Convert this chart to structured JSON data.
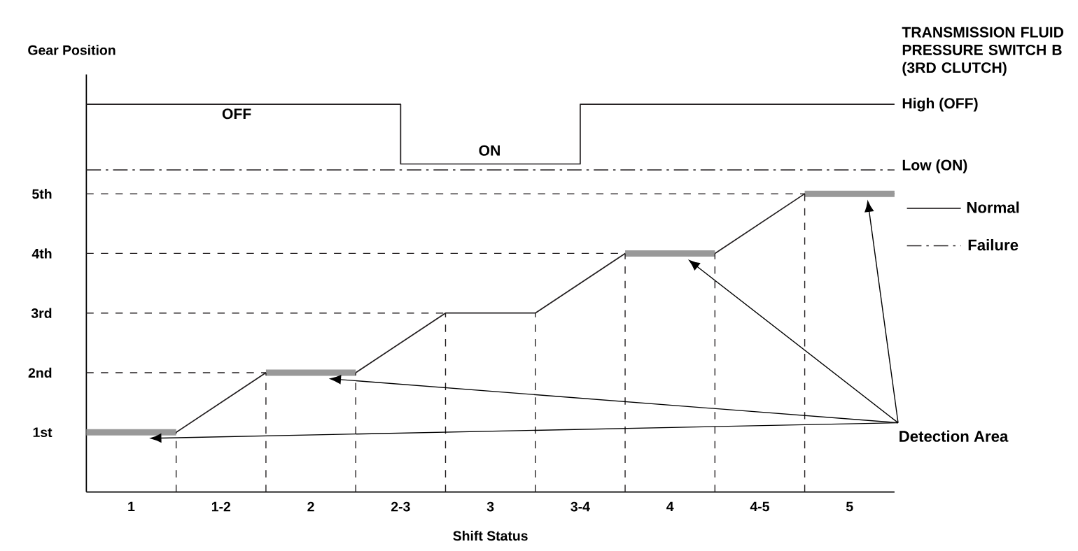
{
  "chart_data": {
    "type": "line",
    "xlabel": "Shift Status",
    "ylabel": "Gear Position",
    "x": [
      0.75,
      1.25,
      1.75,
      2.25,
      2.75,
      3.25,
      3.75,
      4.25,
      4.75,
      5.25
    ],
    "xlim": [
      0.75,
      5.25
    ],
    "ylim": [
      0,
      7
    ],
    "xticks": [
      1,
      {
        "value": 1.5,
        "label": "1-2"
      },
      2,
      {
        "value": 2.5,
        "label": "2-3"
      },
      3,
      {
        "value": 3.5,
        "label": "3-4"
      },
      4,
      {
        "value": 4.5,
        "label": "4-5"
      },
      5
    ],
    "yticks": [
      {
        "value": 1,
        "label": "1st"
      },
      {
        "value": 2,
        "label": "2nd"
      },
      {
        "value": 3,
        "label": "3rd"
      },
      {
        "value": 4,
        "label": "4th"
      },
      {
        "value": 5,
        "label": "5th"
      }
    ],
    "series": [
      {
        "color": "#231f20",
        "values": [
          1,
          1,
          2,
          2,
          3,
          3,
          4,
          4,
          5,
          5
        ]
      },
      {
        "name": "Detection Area",
        "color": "#999999",
        "x": [
          0.75,
          1.25
        ],
        "values": [
          1,
          1
        ]
      },
      {
        "color": "#999999",
        "x": [
          1.75,
          2.25
        ],
        "values": [
          2,
          2
        ]
      },
      {
        "color": "#999999",
        "x": [
          3.75,
          4.25
        ],
        "values": [
          4,
          4
        ]
      },
      {
        "color": "#999999",
        "x": [
          4.75,
          5.25
        ],
        "values": [
          5,
          5
        ]
      },
      {
        "name": "Normal",
        "color": "#231f20",
        "x": [
          0.75,
          2.5,
          2.5,
          3.5,
          3.5,
          5.25
        ],
        "values": [
          6.5,
          6.5,
          5.5,
          5.5,
          6.5,
          6.5
        ]
      },
      {
        "name": "Failure",
        "color": "#231f20",
        "line_style": "dashdot",
        "x": [
          0.75,
          5.25
        ],
        "values": [
          5.4,
          5.4
        ]
      },
      {
        "color": "#231f20",
        "line_style": "dashed",
        "x": [
          1.25,
          1.25
        ],
        "values": [
          0,
          1
        ]
      },
      {
        "color": "#231f20",
        "line_style": "dashed",
        "x": [
          1.75,
          1.75
        ],
        "values": [
          0,
          2
        ]
      },
      {
        "color": "#231f20",
        "line_style": "dashed",
        "x": [
          2.25,
          2.25
        ],
        "values": [
          0,
          2
        ]
      },
      {
        "color": "#231f20",
        "line_style": "dashed",
        "x": [
          2.75,
          2.75
        ],
        "values": [
          0,
          3
        ]
      },
      {
        "color": "#231f20",
        "line_style": "dashed",
        "x": [
          3.25,
          3.25
        ],
        "values": [
          0,
          3
        ]
      },
      {
        "color": "#231f20",
        "line_style": "dashed",
        "x": [
          3.75,
          3.75
        ],
        "values": [
          0,
          4
        ]
      },
      {
        "color": "#231f20",
        "line_style": "dashed",
        "x": [
          4.25,
          4.25
        ],
        "values": [
          0,
          4
        ]
      },
      {
        "color": "#231f20",
        "line_style": "dashed",
        "x": [
          4.75,
          4.75
        ],
        "values": [
          0,
          5
        ]
      },
      {
        "color": "#231f20",
        "line_style": "dashed",
        "x": [
          0.75,
          1.75
        ],
        "values": [
          2,
          2
        ]
      },
      {
        "color": "#231f20",
        "line_style": "dashed",
        "x": [
          0.75,
          2.75
        ],
        "values": [
          3,
          3
        ]
      },
      {
        "color": "#231f20",
        "line_style": "dashed",
        "x": [
          0.75,
          3.75
        ],
        "values": [
          4,
          4
        ]
      },
      {
        "color": "#231f20",
        "line_style": "dashed",
        "x": [
          0.75,
          4.75
        ],
        "values": [
          5,
          5
        ]
      }
    ],
    "legend": "right",
    "annotations": [
      "TRANSMISSION FLUID PRESSURE SWITCH B (3RD CLUTCH)",
      "OFF",
      "ON",
      "High (OFF)",
      "Low (ON)"
    ]
  }
}
